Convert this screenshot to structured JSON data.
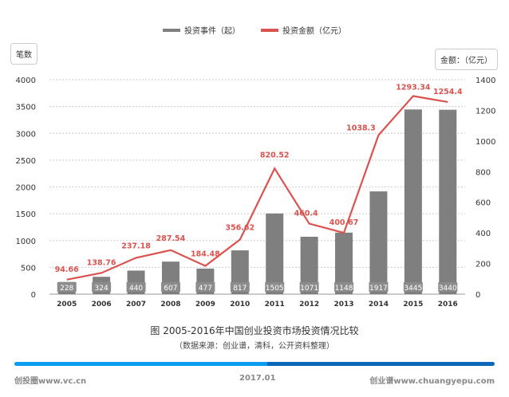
{
  "chart_data": {
    "type": "bar+line",
    "title": "图 2005-2016年中国创业投资市场投资情况比较",
    "subtitle": "（数据来源：创业谱，清科，公开资料整理）",
    "categories": [
      "2005",
      "2006",
      "2007",
      "2008",
      "2009",
      "2010",
      "2011",
      "2012",
      "2013",
      "2014",
      "2015",
      "2016"
    ],
    "series": [
      {
        "name": "投资事件（起）",
        "type": "bar",
        "axis": "left",
        "color": "#7f7f7f",
        "values": [
          228,
          324,
          440,
          607,
          477,
          817,
          1505,
          1071,
          1148,
          1917,
          3445,
          3440
        ]
      },
      {
        "name": "投资金额（亿元）",
        "type": "line",
        "axis": "right",
        "color": "#d9534f",
        "values": [
          94.66,
          138.76,
          237.18,
          287.54,
          184.48,
          356.62,
          820.52,
          460.4,
          400.67,
          1038.3,
          1293.34,
          1254.4
        ]
      }
    ],
    "ylabel": "笔数",
    "y2label": "金额：（亿元）",
    "ylim": [
      0,
      4000
    ],
    "y2lim": [
      0,
      1400
    ],
    "yticks": [
      0,
      500,
      1000,
      1500,
      2000,
      2500,
      3000,
      3500,
      4000
    ],
    "y2ticks": [
      0,
      200,
      400,
      600,
      800,
      1000,
      1200,
      1400
    ],
    "grid": "dashed horizontal",
    "legend": "top-center"
  },
  "footer": {
    "left": "创投圈www.vc.cn",
    "center": "2017.01",
    "right": "创业谱www.chuangyepu.com"
  }
}
